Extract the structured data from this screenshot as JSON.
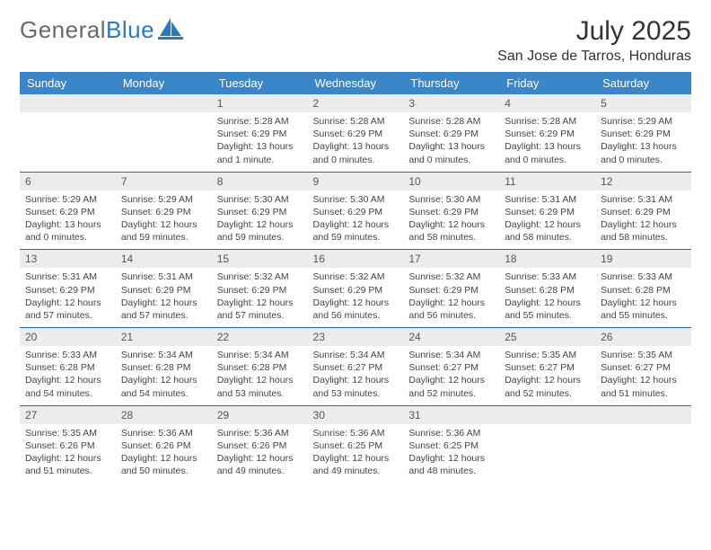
{
  "brand": {
    "word1": "General",
    "word2": "Blue"
  },
  "title": {
    "month": "July 2025",
    "location": "San Jose de Tarros, Honduras"
  },
  "colors": {
    "header_blue": "#3b86c7",
    "rule": "#2e6aa0",
    "light_grey": "#ececec",
    "logo_blue": "#2a7bbd"
  },
  "weekdays": [
    "Sunday",
    "Monday",
    "Tuesday",
    "Wednesday",
    "Thursday",
    "Friday",
    "Saturday"
  ],
  "weeks": [
    [
      null,
      null,
      {
        "n": "1",
        "sr": "5:28 AM",
        "ss": "6:29 PM",
        "dl": "13 hours and 1 minute."
      },
      {
        "n": "2",
        "sr": "5:28 AM",
        "ss": "6:29 PM",
        "dl": "13 hours and 0 minutes."
      },
      {
        "n": "3",
        "sr": "5:28 AM",
        "ss": "6:29 PM",
        "dl": "13 hours and 0 minutes."
      },
      {
        "n": "4",
        "sr": "5:28 AM",
        "ss": "6:29 PM",
        "dl": "13 hours and 0 minutes."
      },
      {
        "n": "5",
        "sr": "5:29 AM",
        "ss": "6:29 PM",
        "dl": "13 hours and 0 minutes."
      }
    ],
    [
      {
        "n": "6",
        "sr": "5:29 AM",
        "ss": "6:29 PM",
        "dl": "13 hours and 0 minutes."
      },
      {
        "n": "7",
        "sr": "5:29 AM",
        "ss": "6:29 PM",
        "dl": "12 hours and 59 minutes."
      },
      {
        "n": "8",
        "sr": "5:30 AM",
        "ss": "6:29 PM",
        "dl": "12 hours and 59 minutes."
      },
      {
        "n": "9",
        "sr": "5:30 AM",
        "ss": "6:29 PM",
        "dl": "12 hours and 59 minutes."
      },
      {
        "n": "10",
        "sr": "5:30 AM",
        "ss": "6:29 PM",
        "dl": "12 hours and 58 minutes."
      },
      {
        "n": "11",
        "sr": "5:31 AM",
        "ss": "6:29 PM",
        "dl": "12 hours and 58 minutes."
      },
      {
        "n": "12",
        "sr": "5:31 AM",
        "ss": "6:29 PM",
        "dl": "12 hours and 58 minutes."
      }
    ],
    [
      {
        "n": "13",
        "sr": "5:31 AM",
        "ss": "6:29 PM",
        "dl": "12 hours and 57 minutes."
      },
      {
        "n": "14",
        "sr": "5:31 AM",
        "ss": "6:29 PM",
        "dl": "12 hours and 57 minutes."
      },
      {
        "n": "15",
        "sr": "5:32 AM",
        "ss": "6:29 PM",
        "dl": "12 hours and 57 minutes."
      },
      {
        "n": "16",
        "sr": "5:32 AM",
        "ss": "6:29 PM",
        "dl": "12 hours and 56 minutes."
      },
      {
        "n": "17",
        "sr": "5:32 AM",
        "ss": "6:29 PM",
        "dl": "12 hours and 56 minutes."
      },
      {
        "n": "18",
        "sr": "5:33 AM",
        "ss": "6:28 PM",
        "dl": "12 hours and 55 minutes."
      },
      {
        "n": "19",
        "sr": "5:33 AM",
        "ss": "6:28 PM",
        "dl": "12 hours and 55 minutes."
      }
    ],
    [
      {
        "n": "20",
        "sr": "5:33 AM",
        "ss": "6:28 PM",
        "dl": "12 hours and 54 minutes."
      },
      {
        "n": "21",
        "sr": "5:34 AM",
        "ss": "6:28 PM",
        "dl": "12 hours and 54 minutes."
      },
      {
        "n": "22",
        "sr": "5:34 AM",
        "ss": "6:28 PM",
        "dl": "12 hours and 53 minutes."
      },
      {
        "n": "23",
        "sr": "5:34 AM",
        "ss": "6:27 PM",
        "dl": "12 hours and 53 minutes."
      },
      {
        "n": "24",
        "sr": "5:34 AM",
        "ss": "6:27 PM",
        "dl": "12 hours and 52 minutes."
      },
      {
        "n": "25",
        "sr": "5:35 AM",
        "ss": "6:27 PM",
        "dl": "12 hours and 52 minutes."
      },
      {
        "n": "26",
        "sr": "5:35 AM",
        "ss": "6:27 PM",
        "dl": "12 hours and 51 minutes."
      }
    ],
    [
      {
        "n": "27",
        "sr": "5:35 AM",
        "ss": "6:26 PM",
        "dl": "12 hours and 51 minutes."
      },
      {
        "n": "28",
        "sr": "5:36 AM",
        "ss": "6:26 PM",
        "dl": "12 hours and 50 minutes."
      },
      {
        "n": "29",
        "sr": "5:36 AM",
        "ss": "6:26 PM",
        "dl": "12 hours and 49 minutes."
      },
      {
        "n": "30",
        "sr": "5:36 AM",
        "ss": "6:25 PM",
        "dl": "12 hours and 49 minutes."
      },
      {
        "n": "31",
        "sr": "5:36 AM",
        "ss": "6:25 PM",
        "dl": "12 hours and 48 minutes."
      },
      null,
      null
    ]
  ],
  "labels": {
    "sunrise": "Sunrise:",
    "sunset": "Sunset:",
    "daylight": "Daylight:"
  }
}
